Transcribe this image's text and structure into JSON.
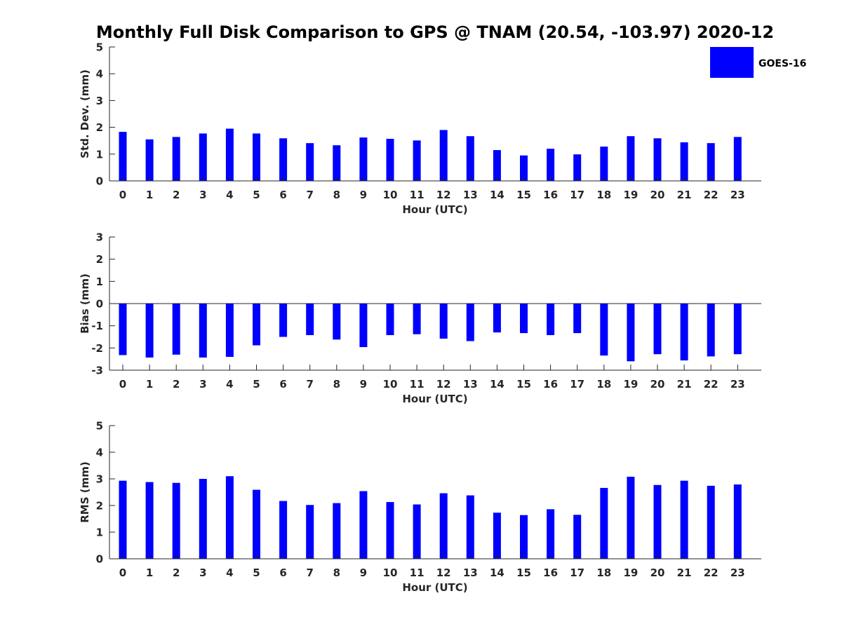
{
  "title": "Monthly Full Disk Comparison to GPS @ TNAM (20.54, -103.97) 2020-12",
  "legend": {
    "label": "GOES-16",
    "color": "#0000ff",
    "placement": "top-right"
  },
  "chart_data": [
    {
      "type": "bar",
      "xlabel": "Hour (UTC)",
      "ylabel": "Std. Dev. (mm)",
      "ylim": [
        0,
        5
      ],
      "yticks": [
        0,
        1,
        2,
        3,
        4,
        5
      ],
      "categories": [
        "0",
        "1",
        "2",
        "3",
        "4",
        "5",
        "6",
        "7",
        "8",
        "9",
        "10",
        "11",
        "12",
        "13",
        "14",
        "15",
        "16",
        "17",
        "18",
        "19",
        "20",
        "21",
        "22",
        "23"
      ],
      "series": [
        {
          "name": "GOES-16",
          "values": [
            1.83,
            1.55,
            1.64,
            1.77,
            1.95,
            1.77,
            1.59,
            1.41,
            1.33,
            1.62,
            1.57,
            1.51,
            1.9,
            1.67,
            1.15,
            0.95,
            1.2,
            0.99,
            1.28,
            1.67,
            1.59,
            1.44,
            1.41,
            1.64
          ]
        }
      ],
      "grid": false
    },
    {
      "type": "bar",
      "xlabel": "Hour (UTC)",
      "ylabel": "Bias (mm)",
      "ylim": [
        -3,
        3
      ],
      "yticks": [
        -3,
        -2,
        -1,
        0,
        1,
        2,
        3
      ],
      "categories": [
        "0",
        "1",
        "2",
        "3",
        "4",
        "5",
        "6",
        "7",
        "8",
        "9",
        "10",
        "11",
        "12",
        "13",
        "14",
        "15",
        "16",
        "17",
        "18",
        "19",
        "20",
        "21",
        "22",
        "23"
      ],
      "series": [
        {
          "name": "GOES-16",
          "values": [
            -2.32,
            -2.43,
            -2.3,
            -2.43,
            -2.4,
            -1.88,
            -1.5,
            -1.42,
            -1.62,
            -1.96,
            -1.42,
            -1.38,
            -1.58,
            -1.69,
            -1.3,
            -1.33,
            -1.42,
            -1.33,
            -2.34,
            -2.6,
            -2.28,
            -2.56,
            -2.38,
            -2.28
          ]
        }
      ],
      "grid": false
    },
    {
      "type": "bar",
      "xlabel": "Hour (UTC)",
      "ylabel": "RMS (mm)",
      "ylim": [
        0,
        5
      ],
      "yticks": [
        0,
        1,
        2,
        3,
        4,
        5
      ],
      "categories": [
        "0",
        "1",
        "2",
        "3",
        "4",
        "5",
        "6",
        "7",
        "8",
        "9",
        "10",
        "11",
        "12",
        "13",
        "14",
        "15",
        "16",
        "17",
        "18",
        "19",
        "20",
        "21",
        "22",
        "23"
      ],
      "series": [
        {
          "name": "GOES-16",
          "values": [
            2.93,
            2.88,
            2.85,
            3.0,
            3.1,
            2.59,
            2.17,
            2.02,
            2.09,
            2.54,
            2.13,
            2.04,
            2.46,
            2.38,
            1.73,
            1.64,
            1.86,
            1.65,
            2.66,
            3.08,
            2.77,
            2.93,
            2.74,
            2.79
          ]
        }
      ],
      "grid": false
    }
  ]
}
